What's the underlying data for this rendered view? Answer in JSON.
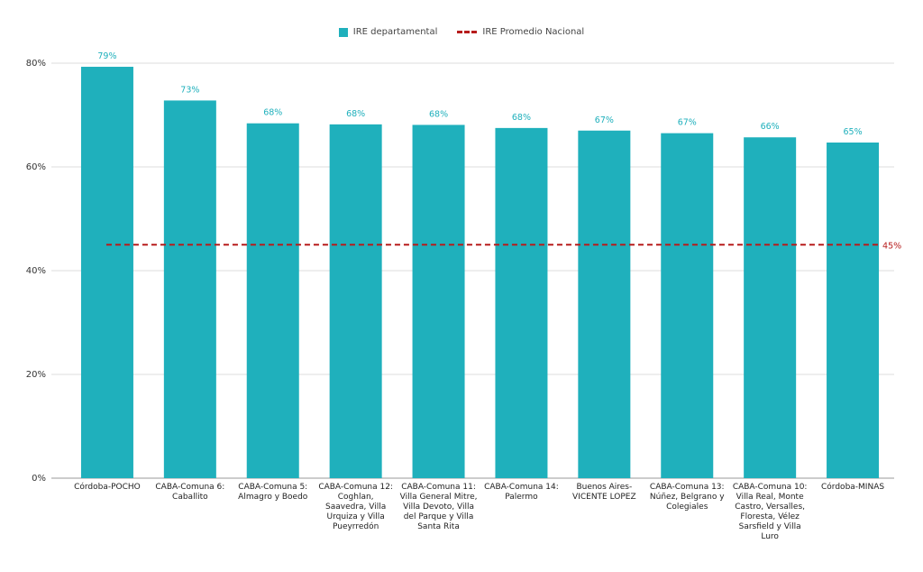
{
  "legend": {
    "bar_label": "IRE departamental",
    "line_label": "IRE Promedio Nacional"
  },
  "colors": {
    "bar": "#1fb0bc",
    "bar_label_text": "#1fb0bc",
    "reference_line": "#b71c1c",
    "grid": "#dddddd"
  },
  "chart_data": {
    "type": "bar",
    "categories": [
      "Córdoba-POCHO",
      "CABA-Comuna 6: Caballito",
      "CABA-Comuna 5: Almagro y Boedo",
      "CABA-Comuna 12: Coghlan, Saavedra, Villa Urquiza y Villa Pueyrredón",
      "CABA-Comuna 11: Villa General Mitre, Villa Devoto, Villa del Parque y Villa Santa Rita",
      "CABA-Comuna 14: Palermo",
      "Buenos Aires-VICENTE LOPEZ",
      "CABA-Comuna 13: Núñez, Belgrano y Colegiales",
      "CABA-Comuna 10: Villa Real, Monte Castro, Versalles, Floresta, Vélez Sarsfield y Villa Luro",
      "Córdoba-MINAS"
    ],
    "category_lines": [
      [
        "Córdoba-POCHO"
      ],
      [
        "CABA-Comuna 6:",
        "Caballito"
      ],
      [
        "CABA-Comuna 5:",
        "Almagro y Boedo"
      ],
      [
        "CABA-Comuna 12:",
        "Coghlan,",
        "Saavedra, Villa",
        "Urquiza y Villa",
        "Pueyrredón"
      ],
      [
        "CABA-Comuna 11:",
        "Villa General Mitre,",
        "Villa Devoto, Villa",
        "del Parque y Villa",
        "Santa Rita"
      ],
      [
        "CABA-Comuna 14:",
        "Palermo"
      ],
      [
        "Buenos Aires-",
        "VICENTE LOPEZ"
      ],
      [
        "CABA-Comuna 13:",
        "Núñez, Belgrano y",
        "Colegiales"
      ],
      [
        "CABA-Comuna 10:",
        "Villa Real, Monte",
        "Castro, Versalles,",
        "Floresta, Vélez",
        "Sarsfield y Villa",
        "Luro"
      ],
      [
        "Córdoba-MINAS"
      ]
    ],
    "series": [
      {
        "name": "IRE departamental",
        "values": [
          79.3,
          72.8,
          68.4,
          68.2,
          68.1,
          67.5,
          67.0,
          66.5,
          65.7,
          64.7
        ],
        "labels": [
          "79%",
          "73%",
          "68%",
          "68%",
          "68%",
          "68%",
          "67%",
          "67%",
          "66%",
          "65%"
        ]
      }
    ],
    "reference": {
      "name": "IRE Promedio Nacional",
      "value": 45,
      "label": "45%"
    },
    "yticks": [
      "0%",
      "20%",
      "40%",
      "60%",
      "80%"
    ],
    "ytick_values": [
      0,
      20,
      40,
      60,
      80
    ],
    "ylim": [
      0,
      80
    ],
    "grid": true,
    "legend_position": "top-center"
  }
}
